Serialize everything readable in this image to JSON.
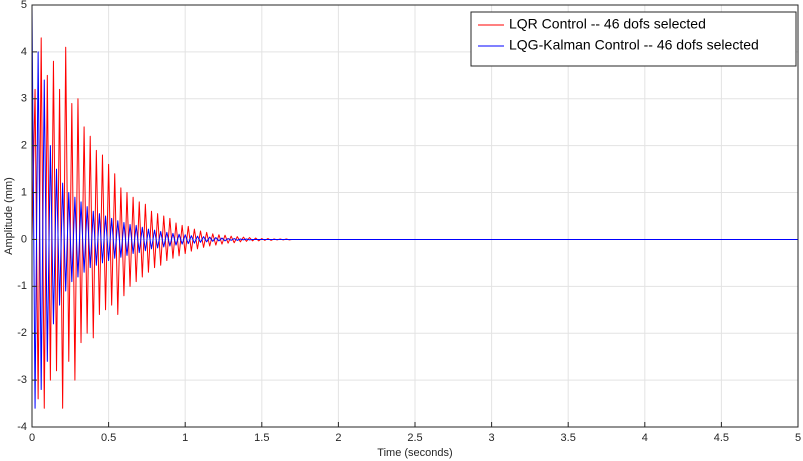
{
  "chart_data": {
    "type": "line",
    "xlabel": "Time (seconds)",
    "ylabel": "Amplitude (mm)",
    "x": [
      0,
      0.02,
      0.04,
      0.06,
      0.08,
      0.1,
      0.12,
      0.14,
      0.16,
      0.18,
      0.2,
      0.22,
      0.24,
      0.26,
      0.28,
      0.3,
      0.32,
      0.34,
      0.36,
      0.38,
      0.4,
      0.42,
      0.44,
      0.46,
      0.48,
      0.5,
      0.52,
      0.54,
      0.56,
      0.58,
      0.6,
      0.62,
      0.64,
      0.66,
      0.68,
      0.7,
      0.72,
      0.74,
      0.76,
      0.78,
      0.8,
      0.82,
      0.84,
      0.86,
      0.88,
      0.9,
      0.92,
      0.94,
      0.96,
      0.98,
      1,
      1.02,
      1.04,
      1.06,
      1.08,
      1.1,
      1.12,
      1.14,
      1.16,
      1.18,
      1.2,
      1.22,
      1.24,
      1.26,
      1.28,
      1.3,
      1.32,
      1.34,
      1.36,
      1.38,
      1.4,
      1.42,
      1.44,
      1.46,
      1.48,
      1.5,
      1.52,
      1.54,
      1.56,
      1.58,
      1.6,
      1.62,
      1.64,
      1.66,
      1.68,
      1.7,
      1.72,
      1.74,
      1.76,
      1.78,
      1.8,
      5
    ],
    "series": [
      {
        "name": "LQR Control -- 46 dofs selected",
        "color": "#ff0000",
        "values": [
          0,
          3.2,
          -3.4,
          4.3,
          -3.6,
          3.5,
          -3.0,
          3.8,
          -2.8,
          3.2,
          -3.6,
          4.1,
          -2.6,
          2.9,
          -3.0,
          3.0,
          -2.2,
          2.4,
          -2.0,
          2.2,
          -2.1,
          1.9,
          -1.6,
          1.8,
          -1.5,
          1.6,
          -1.4,
          1.4,
          -1.6,
          1.1,
          -1.2,
          1.0,
          -1.0,
          0.9,
          -0.9,
          0.8,
          -0.8,
          0.75,
          -0.7,
          0.6,
          -0.6,
          0.55,
          -0.55,
          0.5,
          -0.45,
          0.45,
          -0.4,
          0.35,
          -0.35,
          0.3,
          -0.3,
          0.28,
          -0.25,
          0.22,
          -0.2,
          0.18,
          -0.17,
          0.15,
          -0.14,
          0.12,
          -0.12,
          0.1,
          -0.1,
          0.09,
          -0.08,
          0.07,
          -0.07,
          0.06,
          -0.05,
          0.05,
          -0.04,
          0.04,
          -0.03,
          0.03,
          -0.03,
          0.02,
          -0.02,
          0.02,
          -0.02,
          0.01,
          -0.01,
          0.01,
          -0.01,
          0.01,
          -0.01,
          0,
          0,
          0,
          0,
          0,
          0,
          0
        ]
      },
      {
        "name": "LQG-Kalman Control -- 46 dofs selected",
        "color": "#0000ff",
        "values": [
          5.0,
          -3.6,
          4.0,
          -3.2,
          3.4,
          -2.6,
          2.0,
          -1.8,
          1.5,
          -1.4,
          1.2,
          -1.1,
          1.0,
          -0.9,
          0.9,
          -0.8,
          0.8,
          -0.7,
          0.7,
          -0.6,
          0.6,
          -0.55,
          0.55,
          -0.5,
          0.5,
          -0.45,
          0.45,
          -0.4,
          0.4,
          -0.38,
          0.36,
          -0.34,
          0.32,
          -0.3,
          0.3,
          -0.28,
          0.26,
          -0.24,
          0.22,
          -0.2,
          0.2,
          -0.18,
          0.17,
          -0.16,
          0.15,
          -0.14,
          0.13,
          -0.12,
          0.11,
          -0.1,
          0.1,
          -0.09,
          0.08,
          -0.08,
          0.07,
          -0.06,
          0.06,
          -0.05,
          0.05,
          -0.04,
          0.04,
          -0.03,
          0.03,
          -0.03,
          0.02,
          -0.02,
          0.02,
          -0.02,
          0.01,
          -0.01,
          0.01,
          -0.01,
          0,
          0,
          0,
          0,
          0,
          0,
          0,
          0,
          0,
          0,
          0,
          0,
          0,
          0,
          0,
          0,
          0,
          0,
          0,
          0
        ]
      }
    ],
    "xlim": [
      0,
      5
    ],
    "xticks": [
      0,
      0.5,
      1,
      1.5,
      2,
      2.5,
      3,
      3.5,
      4,
      4.5,
      5
    ],
    "ylim": [
      -4,
      5
    ],
    "yticks": [
      -4,
      -3,
      -2,
      -1,
      0,
      1,
      2,
      3,
      4,
      5
    ],
    "grid": true,
    "legend": "upper right"
  }
}
